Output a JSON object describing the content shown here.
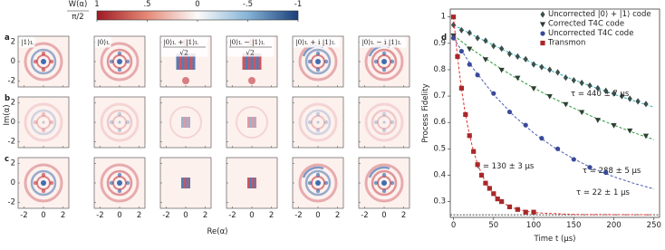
{
  "wigner": {
    "colorbar": {
      "label_top": "W(α)",
      "label_bottom": "π/2",
      "ticks": [
        {
          "value": 1,
          "label": "1"
        },
        {
          "value": 0.5,
          "label": ".5"
        },
        0,
        {
          "value": -0.5,
          "label": "-.5"
        },
        -1
      ]
    },
    "rows": [
      {
        "label": "a"
      },
      {
        "label": "b"
      },
      {
        "label": "c"
      }
    ],
    "columns": [
      {
        "parts": [
          "|1⟩",
          "L"
        ]
      },
      {
        "parts": [
          "|0⟩",
          "L"
        ]
      },
      {
        "parts": [
          "|0⟩",
          "L",
          " + |1⟩",
          "L"
        ],
        "denominator": "√2"
      },
      {
        "parts": [
          "|0⟩",
          "L",
          " − |1⟩",
          "L"
        ],
        "denominator": "√2"
      },
      {
        "parts": [
          "|0⟩",
          "L",
          " + i |1⟩",
          "L"
        ]
      },
      {
        "parts": [
          "|0⟩",
          "L",
          " − i |1⟩",
          "L"
        ]
      }
    ],
    "ticks": [
      -2,
      0,
      2
    ],
    "lim": [
      -2.6,
      2.6
    ],
    "xlabel": "Re(α)",
    "ylabel": "Im(α)"
  },
  "chart_data": {
    "type": "scatter",
    "panel_label": "d",
    "xlabel": "Time t (μs)",
    "ylabel": "Process Fidelity",
    "xlim": [
      -4,
      257
    ],
    "ylim": [
      0.24,
      1.03
    ],
    "xticks": [
      0,
      50,
      100,
      150,
      200,
      250
    ],
    "yticks": [
      0.3,
      0.4,
      0.5,
      0.6,
      0.7,
      0.8,
      0.9,
      1.0
    ],
    "reference_line": 0.25,
    "legend": "upper right",
    "series": [
      {
        "name": "Uncorrected |0⟩ + |1⟩ code",
        "marker": "diamond",
        "color": "#3d4f4a",
        "fit_color": "#20b0b8",
        "annotation": "τ = 440 ± 7 μs",
        "x": [
          0,
          10,
          20,
          30,
          40,
          50,
          60,
          70,
          80,
          90,
          100,
          110,
          120,
          130,
          140,
          150,
          160,
          170,
          180,
          190,
          200,
          210,
          220,
          230,
          240
        ],
        "values": [
          0.97,
          0.95,
          0.94,
          0.92,
          0.91,
          0.89,
          0.88,
          0.86,
          0.85,
          0.84,
          0.82,
          0.81,
          0.8,
          0.79,
          0.77,
          0.76,
          0.75,
          0.74,
          0.73,
          0.72,
          0.71,
          0.7,
          0.69,
          0.68,
          0.67
        ],
        "fit": {
          "x": [
            0,
            25,
            50,
            75,
            100,
            125,
            150,
            175,
            200,
            225,
            250
          ],
          "values": [
            0.97,
            0.93,
            0.893,
            0.857,
            0.824,
            0.792,
            0.762,
            0.734,
            0.707,
            0.682,
            0.658
          ]
        }
      },
      {
        "name": "Corrected T4C code",
        "marker": "triangle",
        "color": "#2f3d35",
        "fit_color": "#2a9a3a",
        "annotation": "τ = 288 ± 5 μs",
        "x": [
          0,
          20,
          40,
          60,
          80,
          100,
          120,
          140,
          160,
          180,
          200,
          220,
          240
        ],
        "values": [
          0.93,
          0.88,
          0.84,
          0.8,
          0.77,
          0.73,
          0.7,
          0.67,
          0.64,
          0.61,
          0.59,
          0.57,
          0.55
        ],
        "fit": {
          "x": [
            0,
            25,
            50,
            75,
            100,
            125,
            150,
            175,
            200,
            225,
            250
          ],
          "values": [
            0.93,
            0.873,
            0.822,
            0.774,
            0.731,
            0.691,
            0.654,
            0.62,
            0.59,
            0.561,
            0.535
          ]
        }
      },
      {
        "name": "Uncorrected T4C code",
        "marker": "circle",
        "color": "#3a4a9a",
        "fit_color": "#4a5cb0",
        "annotation": "τ = 130 ± 3 μs",
        "x": [
          0,
          10,
          20,
          30,
          50,
          70,
          90,
          110,
          130,
          150,
          170,
          190
        ],
        "values": [
          0.92,
          0.87,
          0.82,
          0.78,
          0.71,
          0.64,
          0.59,
          0.54,
          0.5,
          0.46,
          0.43,
          0.41
        ],
        "fit": {
          "x": [
            0,
            25,
            50,
            75,
            100,
            125,
            150,
            175,
            200,
            225,
            250
          ],
          "values": [
            0.92,
            0.803,
            0.706,
            0.626,
            0.56,
            0.506,
            0.462,
            0.424,
            0.394,
            0.369,
            0.348
          ]
        }
      },
      {
        "name": "Transmon",
        "marker": "square",
        "color": "#a8282a",
        "fit_color": "#e03030",
        "annotation": "τ = 22 ± 1 μs",
        "x": [
          0,
          5,
          10,
          15,
          20,
          25,
          30,
          35,
          40,
          45,
          50,
          55,
          60,
          70,
          80,
          90,
          100
        ],
        "values": [
          1.0,
          0.85,
          0.73,
          0.63,
          0.55,
          0.49,
          0.44,
          0.4,
          0.37,
          0.35,
          0.33,
          0.31,
          0.3,
          0.28,
          0.27,
          0.26,
          0.26
        ],
        "fit": {
          "x": [
            0,
            5,
            10,
            15,
            20,
            25,
            30,
            40,
            50,
            60,
            70,
            80,
            100,
            150,
            250
          ],
          "values": [
            1.0,
            0.848,
            0.726,
            0.629,
            0.552,
            0.491,
            0.442,
            0.372,
            0.327,
            0.299,
            0.281,
            0.27,
            0.258,
            0.251,
            0.25
          ]
        }
      }
    ]
  }
}
